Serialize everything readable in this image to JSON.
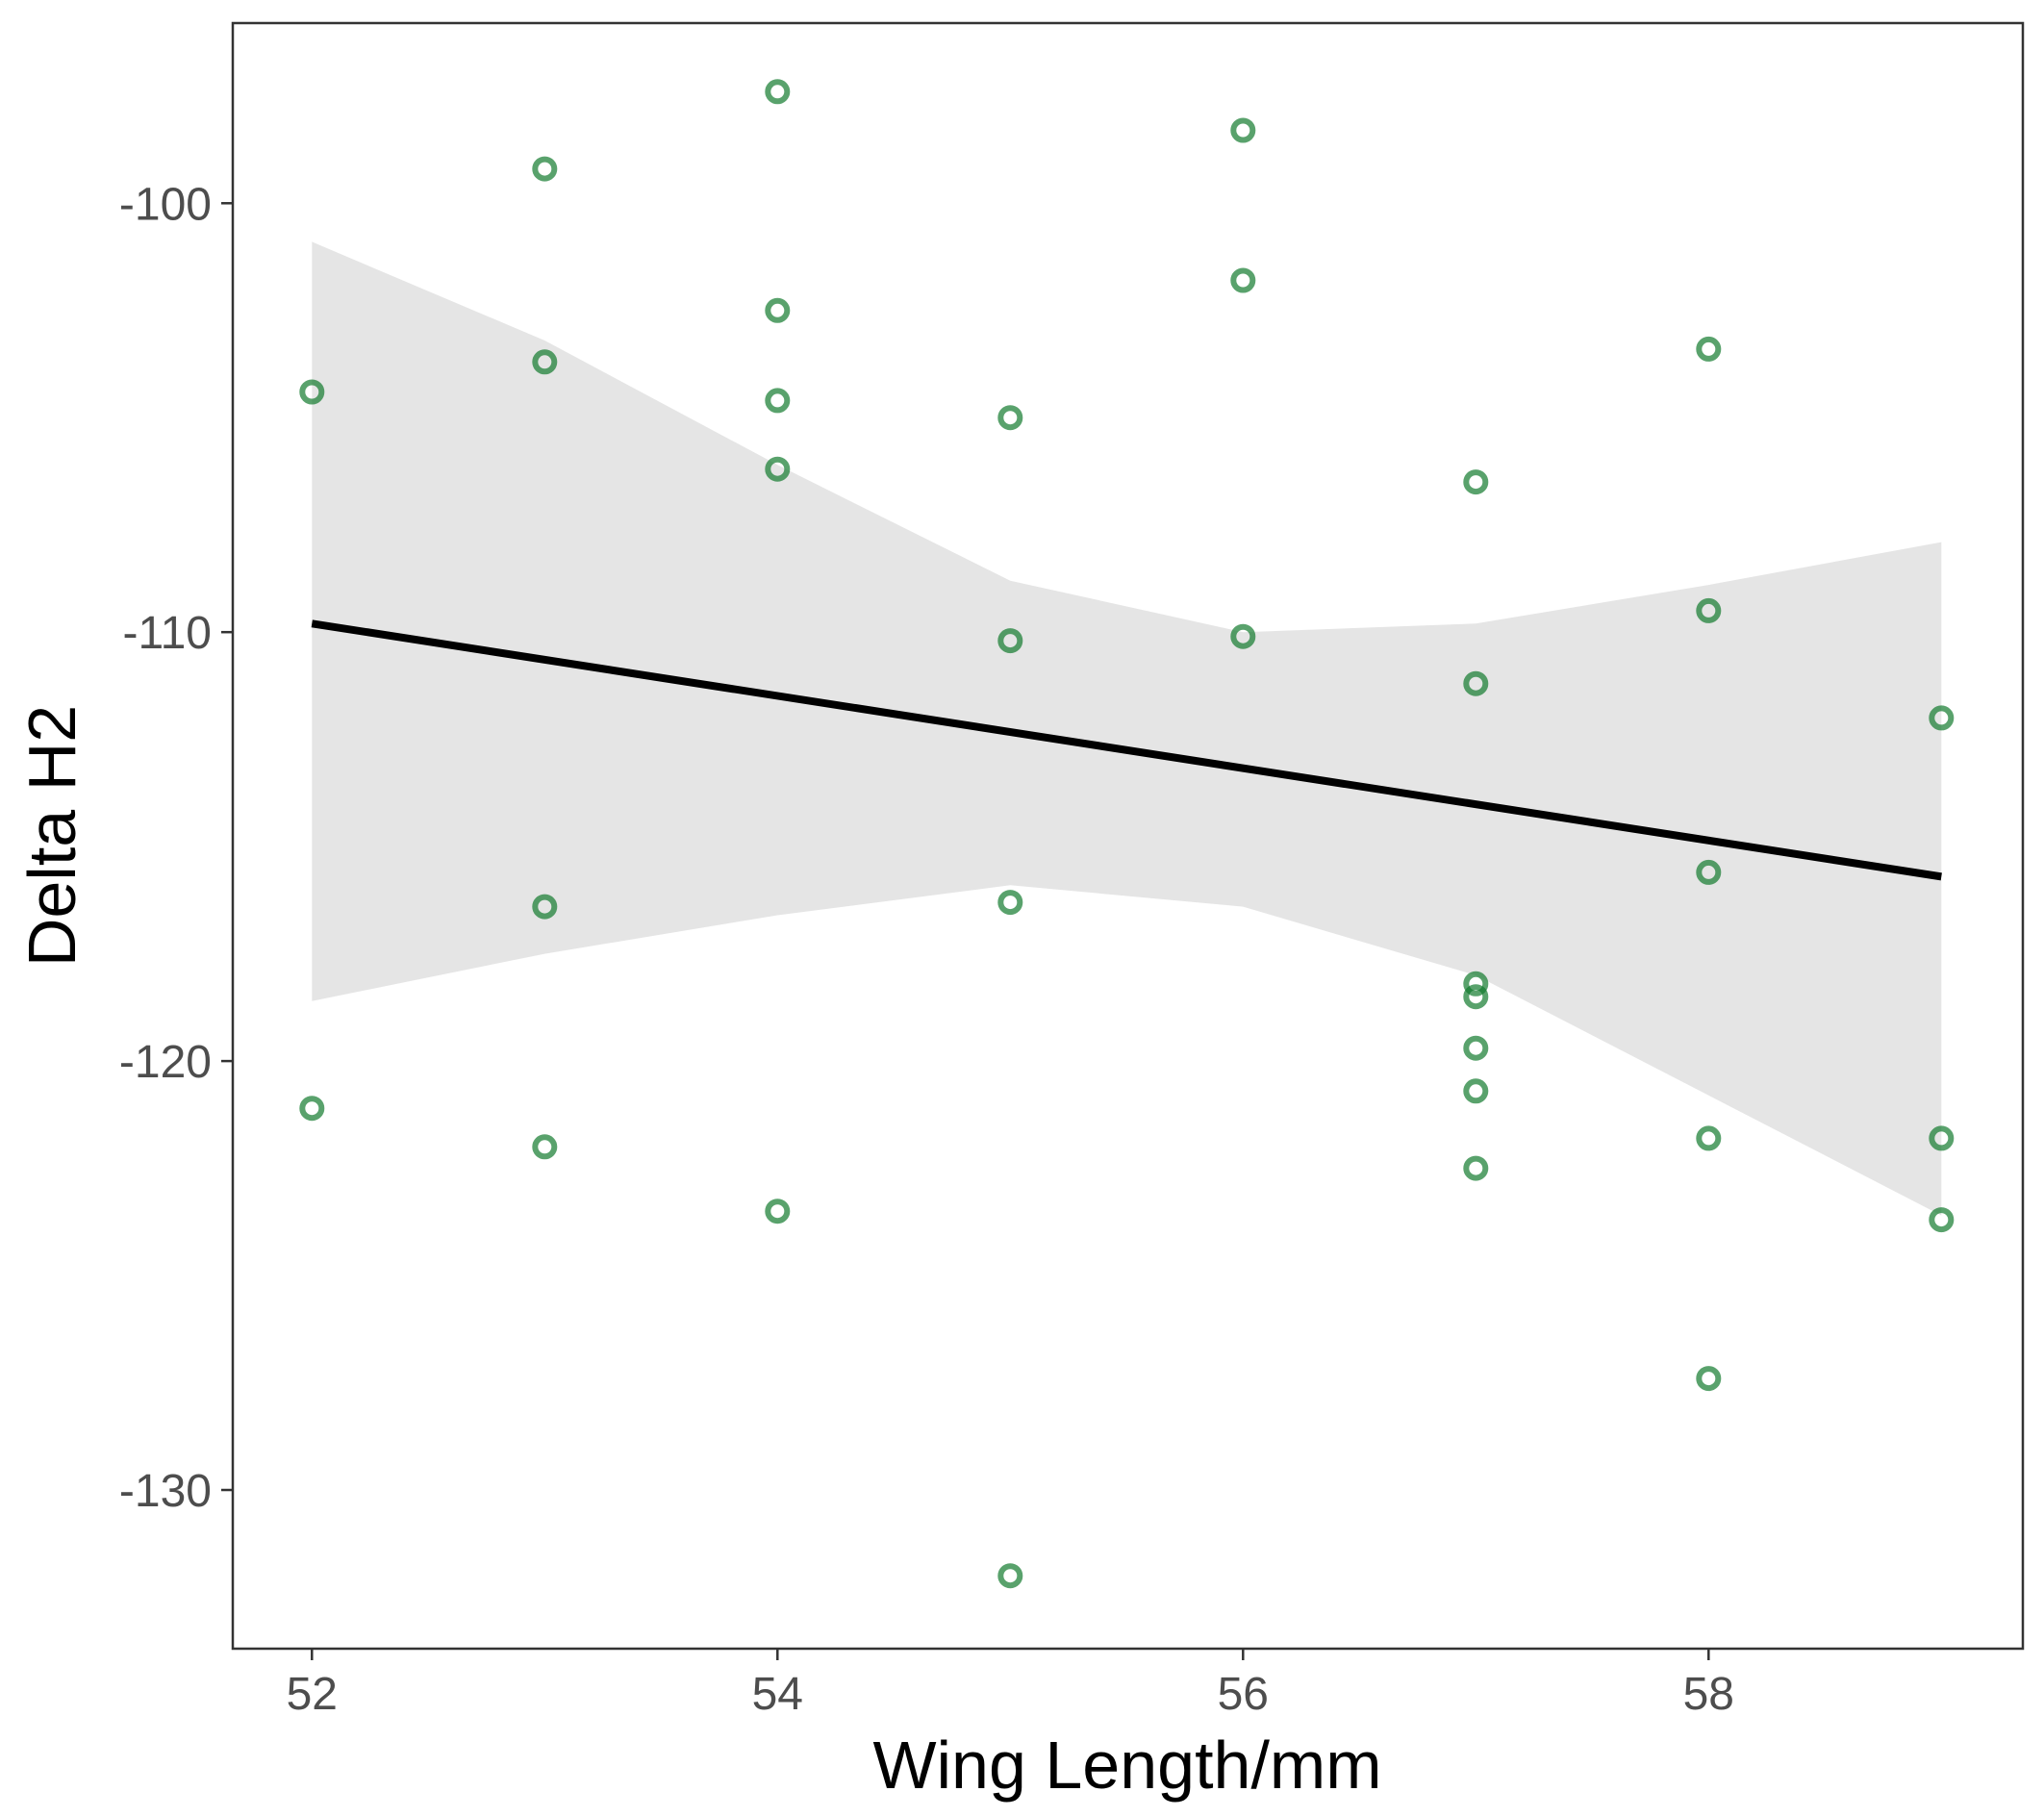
{
  "chart_data": {
    "type": "scatter",
    "xlabel": "Wing Length/mm",
    "ylabel": "Delta H2",
    "xlim": [
      51.66,
      59.35
    ],
    "ylim": [
      -133.7,
      -95.8
    ],
    "x_ticks": [
      52,
      54,
      56,
      58
    ],
    "y_ticks": [
      -130,
      -120,
      -110,
      -100
    ],
    "x_tick_labels": [
      "52",
      "54",
      "56",
      "58"
    ],
    "y_tick_labels": [
      "-130",
      "-120",
      "-110",
      "-100"
    ],
    "grid": false,
    "point_color": "#137a2e",
    "line_color": "#000000",
    "band_color": "#e5e5e5",
    "points": [
      {
        "x": 52,
        "y": -104.4
      },
      {
        "x": 52,
        "y": -121.1
      },
      {
        "x": 53,
        "y": -99.2
      },
      {
        "x": 53,
        "y": -103.7
      },
      {
        "x": 53,
        "y": -116.4
      },
      {
        "x": 53,
        "y": -122.0
      },
      {
        "x": 54,
        "y": -97.4
      },
      {
        "x": 54,
        "y": -102.5
      },
      {
        "x": 54,
        "y": -104.6
      },
      {
        "x": 54,
        "y": -106.2
      },
      {
        "x": 54,
        "y": -123.5
      },
      {
        "x": 55,
        "y": -105.0
      },
      {
        "x": 55,
        "y": -110.2
      },
      {
        "x": 55,
        "y": -116.3
      },
      {
        "x": 55,
        "y": -132.0
      },
      {
        "x": 56,
        "y": -98.3
      },
      {
        "x": 56,
        "y": -101.8
      },
      {
        "x": 56,
        "y": -110.1
      },
      {
        "x": 57,
        "y": -106.5
      },
      {
        "x": 57,
        "y": -111.2
      },
      {
        "x": 57,
        "y": -118.2
      },
      {
        "x": 57,
        "y": -118.5
      },
      {
        "x": 57,
        "y": -119.7
      },
      {
        "x": 57,
        "y": -120.7
      },
      {
        "x": 57,
        "y": -122.5
      },
      {
        "x": 58,
        "y": -103.4
      },
      {
        "x": 58,
        "y": -109.5
      },
      {
        "x": 58,
        "y": -115.6
      },
      {
        "x": 58,
        "y": -121.8
      },
      {
        "x": 58,
        "y": -127.4
      },
      {
        "x": 59,
        "y": -112.0
      },
      {
        "x": 59,
        "y": -121.8
      },
      {
        "x": 59,
        "y": -123.7
      }
    ],
    "fit_line": {
      "x": [
        52,
        59
      ],
      "y": [
        -109.8,
        -115.7
      ]
    },
    "confidence_band": {
      "x": [
        52,
        53,
        54,
        55,
        56,
        57,
        58,
        59
      ],
      "upper": [
        -100.9,
        -103.2,
        -106.1,
        -108.8,
        -110.0,
        -109.8,
        -108.9,
        -107.9
      ],
      "lower": [
        -118.6,
        -117.5,
        -116.6,
        -115.9,
        -116.4,
        -118.0,
        -120.8,
        -123.6
      ]
    }
  }
}
